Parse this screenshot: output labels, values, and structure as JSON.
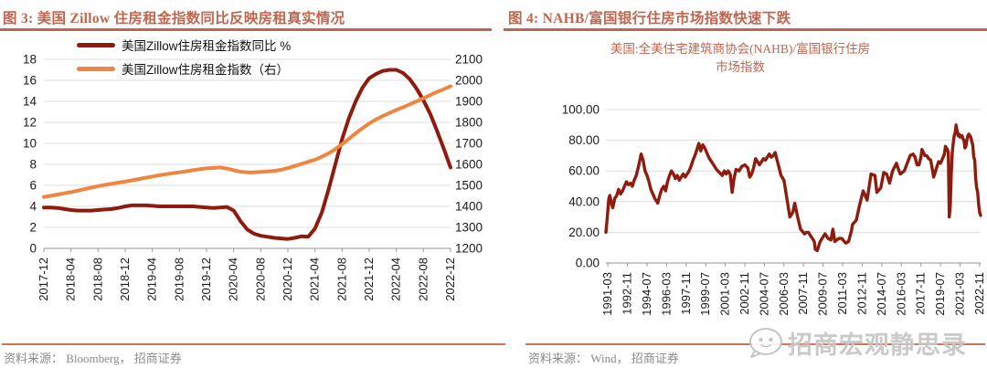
{
  "panels": {
    "left": {
      "title": "图 3: 美国 Zillow 住房租金指数同比反映房租真实情况",
      "source": "资料来源： Bloomberg， 招商证券",
      "legend": [
        {
          "label": "美国Zillow住房租金指数同比 %",
          "color": "#8e1b0e"
        },
        {
          "label": "美国Zillow住房租金指数（右）",
          "color": "#ee8640"
        }
      ]
    },
    "right": {
      "title": "图 4: NAHB/富国银行住房市场指数快速下跌",
      "subtitle_line1": "美国:全美住宅建筑商协会(NAHB)/富国银行住房",
      "subtitle_line2": "市场指数",
      "source": "资料来源： Wind， 招商证券"
    }
  },
  "watermark": {
    "text": "招商宏观静思录",
    "icon": "wechat-chat-bubble-face"
  },
  "colors": {
    "title_accent": "#c2654c",
    "source_rule": "#cd7257",
    "dark_red_line": "#8e1b0e",
    "orange_line": "#ee8640",
    "gridline": "#dcdcdc",
    "axis_line": "#a8a8a8",
    "tick_text": "#1a1a1a",
    "watermark_gray": "#c6c6c6"
  },
  "chart_data": [
    {
      "type": "line",
      "title": "美国 Zillow 住房租金指数同比反映房租真实情况",
      "xlabel": "",
      "ylabel": "",
      "grid": true,
      "legend_position": "top-left",
      "x_unit": "month",
      "x_min": 0,
      "x_max": 60,
      "x_tick_month_step": 4,
      "x_tick_labels": [
        "2017-12",
        "2018-04",
        "2018-08",
        "2018-12",
        "2019-04",
        "2019-08",
        "2019-12",
        "2020-04",
        "2020-08",
        "2020-12",
        "2021-04",
        "2021-08",
        "2021-12",
        "2022-04",
        "2022-08",
        "2022-12"
      ],
      "left_axis": {
        "min": 0,
        "max": 18,
        "step": 2,
        "tick_labels": [
          "0",
          "2",
          "4",
          "6",
          "8",
          "10",
          "12",
          "14",
          "16",
          "18"
        ]
      },
      "right_axis": {
        "min": 1200,
        "max": 2100,
        "step": 100,
        "tick_labels": [
          "1200",
          "1300",
          "1400",
          "1500",
          "1600",
          "1700",
          "1800",
          "1900",
          "2000",
          "2100"
        ]
      },
      "series": [
        {
          "name": "美国Zillow住房租金指数同比 %",
          "axis": "left",
          "color": "#8e1b0e",
          "width": 4,
          "values": [
            3.9,
            3.9,
            3.85,
            3.75,
            3.65,
            3.6,
            3.6,
            3.6,
            3.65,
            3.7,
            3.75,
            3.85,
            4.0,
            4.1,
            4.1,
            4.1,
            4.05,
            4.0,
            4.0,
            4.0,
            4.0,
            4.0,
            4.0,
            3.95,
            3.9,
            3.85,
            3.9,
            3.95,
            3.6,
            2.6,
            1.8,
            1.4,
            1.2,
            1.1,
            1.0,
            0.95,
            0.9,
            1.0,
            1.15,
            1.1,
            1.9,
            3.4,
            5.6,
            8.0,
            10.4,
            12.4,
            14.0,
            15.3,
            16.2,
            16.6,
            16.9,
            17.0,
            17.0,
            16.7,
            16.1,
            15.2,
            14.1,
            12.8,
            11.2,
            9.5,
            7.7
          ]
        },
        {
          "name": "美国Zillow住房租金指数（右）",
          "axis": "right",
          "color": "#ee8640",
          "width": 4,
          "values": [
            1445,
            1450,
            1456,
            1462,
            1468,
            1475,
            1482,
            1489,
            1496,
            1502,
            1508,
            1513,
            1518,
            1524,
            1530,
            1536,
            1542,
            1548,
            1553,
            1558,
            1562,
            1567,
            1572,
            1577,
            1581,
            1583,
            1585,
            1580,
            1572,
            1565,
            1562,
            1562,
            1564,
            1566,
            1569,
            1574,
            1582,
            1592,
            1602,
            1612,
            1622,
            1636,
            1652,
            1672,
            1696,
            1722,
            1748,
            1772,
            1795,
            1814,
            1830,
            1845,
            1859,
            1872,
            1886,
            1900,
            1915,
            1930,
            1945,
            1958,
            1972
          ]
        }
      ]
    },
    {
      "type": "line",
      "title": "美国:全美住宅建筑商协会(NAHB)/富国银行住房市场指数",
      "xlabel": "",
      "ylabel": "",
      "grid": true,
      "x_unit": "month",
      "x_min": 0,
      "x_max": 383,
      "x_tick_month_indices": [
        2,
        22,
        42,
        62,
        82,
        102,
        122,
        142,
        162,
        182,
        202,
        222,
        242,
        262,
        282,
        302,
        322,
        342,
        362,
        382
      ],
      "x_tick_labels": [
        "1991-03",
        "1992-11",
        "1994-07",
        "1996-03",
        "1997-11",
        "1999-07",
        "2001-03",
        "2002-11",
        "2004-07",
        "2006-03",
        "2007-11",
        "2009-07",
        "2011-03",
        "2012-11",
        "2014-07",
        "2016-03",
        "2017-11",
        "2019-07",
        "2021-03",
        "2022-11"
      ],
      "left_axis": {
        "min": 0,
        "max": 100,
        "step": 20,
        "tick_labels": [
          "0.00",
          "20.00",
          "40.00",
          "60.00",
          "80.00",
          "100.00"
        ]
      },
      "series": [
        {
          "name": "美国:全美住宅建筑商协会(NAHB)/富国银行住房市场指数",
          "axis": "left",
          "color": "#8e1b0e",
          "width": 3.4,
          "points": [
            [
              0,
              20
            ],
            [
              1,
              27
            ],
            [
              2,
              34
            ],
            [
              3,
              42
            ],
            [
              4,
              44
            ],
            [
              5,
              41
            ],
            [
              6,
              38
            ],
            [
              7,
              36
            ],
            [
              8,
              39
            ],
            [
              9,
              42
            ],
            [
              11,
              44
            ],
            [
              13,
              48
            ],
            [
              15,
              45
            ],
            [
              17,
              47
            ],
            [
              19,
              50
            ],
            [
              21,
              53
            ],
            [
              23,
              51
            ],
            [
              25,
              52
            ],
            [
              27,
              50
            ],
            [
              29,
              54
            ],
            [
              31,
              57
            ],
            [
              33,
              62
            ],
            [
              35,
              68
            ],
            [
              36,
              71
            ],
            [
              38,
              67
            ],
            [
              40,
              60
            ],
            [
              42,
              57
            ],
            [
              44,
              53
            ],
            [
              46,
              48
            ],
            [
              48,
              45
            ],
            [
              50,
              42
            ],
            [
              53,
              39
            ],
            [
              55,
              44
            ],
            [
              57,
              48
            ],
            [
              59,
              50
            ],
            [
              61,
              47
            ],
            [
              63,
              53
            ],
            [
              65,
              57
            ],
            [
              67,
              60
            ],
            [
              69,
              58
            ],
            [
              71,
              55
            ],
            [
              73,
              57
            ],
            [
              75,
              54
            ],
            [
              77,
              56
            ],
            [
              79,
              58
            ],
            [
              81,
              56
            ],
            [
              83,
              58
            ],
            [
              85,
              60
            ],
            [
              87,
              63
            ],
            [
              89,
              67
            ],
            [
              91,
              70
            ],
            [
              93,
              74
            ],
            [
              95,
              78
            ],
            [
              97,
              73
            ],
            [
              99,
              77
            ],
            [
              101,
              75
            ],
            [
              103,
              72
            ],
            [
              105,
              69
            ],
            [
              107,
              67
            ],
            [
              110,
              64
            ],
            [
              113,
              61
            ],
            [
              116,
              59
            ],
            [
              119,
              57
            ],
            [
              121,
              60
            ],
            [
              123,
              58
            ],
            [
              125,
              60
            ],
            [
              127,
              58
            ],
            [
              129,
              46
            ],
            [
              131,
              55
            ],
            [
              133,
              61
            ],
            [
              136,
              60
            ],
            [
              139,
              63
            ],
            [
              142,
              64
            ],
            [
              145,
              62
            ],
            [
              147,
              56
            ],
            [
              149,
              58
            ],
            [
              151,
              62
            ],
            [
              153,
              68
            ],
            [
              155,
              66
            ],
            [
              157,
              64
            ],
            [
              159,
              66
            ],
            [
              161,
              68
            ],
            [
              163,
              67
            ],
            [
              165,
              69
            ],
            [
              167,
              71
            ],
            [
              169,
              69
            ],
            [
              171,
              70
            ],
            [
              173,
              72
            ],
            [
              175,
              67
            ],
            [
              177,
              62
            ],
            [
              179,
              57
            ],
            [
              182,
              54
            ],
            [
              185,
              42
            ],
            [
              188,
              30
            ],
            [
              191,
              33
            ],
            [
              193,
              39
            ],
            [
              196,
              30
            ],
            [
              199,
              22
            ],
            [
              203,
              19
            ],
            [
              205,
              20
            ],
            [
              207,
              20
            ],
            [
              209,
              18
            ],
            [
              211,
              16
            ],
            [
              213,
              14
            ],
            [
              214,
              9
            ],
            [
              216,
              8
            ],
            [
              219,
              14
            ],
            [
              224,
              19
            ],
            [
              227,
              16
            ],
            [
              230,
              15
            ],
            [
              232,
              22
            ],
            [
              234,
              14
            ],
            [
              238,
              16
            ],
            [
              241,
              16
            ],
            [
              245,
              13
            ],
            [
              248,
              14
            ],
            [
              251,
              21
            ],
            [
              252,
              25
            ],
            [
              256,
              28
            ],
            [
              259,
              37
            ],
            [
              263,
              47
            ],
            [
              267,
              41
            ],
            [
              271,
              58
            ],
            [
              275,
              57
            ],
            [
              277,
              46
            ],
            [
              281,
              49
            ],
            [
              284,
              59
            ],
            [
              287,
              58
            ],
            [
              290,
              52
            ],
            [
              293,
              60
            ],
            [
              297,
              65
            ],
            [
              299,
              61
            ],
            [
              301,
              58
            ],
            [
              305,
              60
            ],
            [
              308,
              65
            ],
            [
              311,
              70
            ],
            [
              314,
              71
            ],
            [
              316,
              69
            ],
            [
              318,
              64
            ],
            [
              320,
              64
            ],
            [
              322,
              69
            ],
            [
              323,
              74
            ],
            [
              326,
              70
            ],
            [
              328,
              70
            ],
            [
              330,
              68
            ],
            [
              332,
              67
            ],
            [
              334,
              60
            ],
            [
              335,
              56
            ],
            [
              336,
              58
            ],
            [
              338,
              62
            ],
            [
              340,
              66
            ],
            [
              342,
              65
            ],
            [
              344,
              68
            ],
            [
              346,
              71
            ],
            [
              347,
              76
            ],
            [
              349,
              74
            ],
            [
              350,
              72
            ],
            [
              351,
              30
            ],
            [
              352,
              37
            ],
            [
              353,
              58
            ],
            [
              354,
              72
            ],
            [
              355,
              78
            ],
            [
              356,
              83
            ],
            [
              357,
              85
            ],
            [
              358,
              90
            ],
            [
              359,
              86
            ],
            [
              360,
              83
            ],
            [
              361,
              84
            ],
            [
              362,
              82
            ],
            [
              363,
              83
            ],
            [
              364,
              83
            ],
            [
              365,
              81
            ],
            [
              366,
              80
            ],
            [
              367,
              75
            ],
            [
              368,
              76
            ],
            [
              369,
              80
            ],
            [
              370,
              83
            ],
            [
              371,
              84
            ],
            [
              372,
              83
            ],
            [
              373,
              82
            ],
            [
              374,
              79
            ],
            [
              375,
              77
            ],
            [
              376,
              69
            ],
            [
              377,
              67
            ],
            [
              378,
              55
            ],
            [
              379,
              49
            ],
            [
              380,
              46
            ],
            [
              381,
              38
            ],
            [
              382,
              33
            ],
            [
              383,
              31
            ]
          ]
        }
      ]
    }
  ]
}
